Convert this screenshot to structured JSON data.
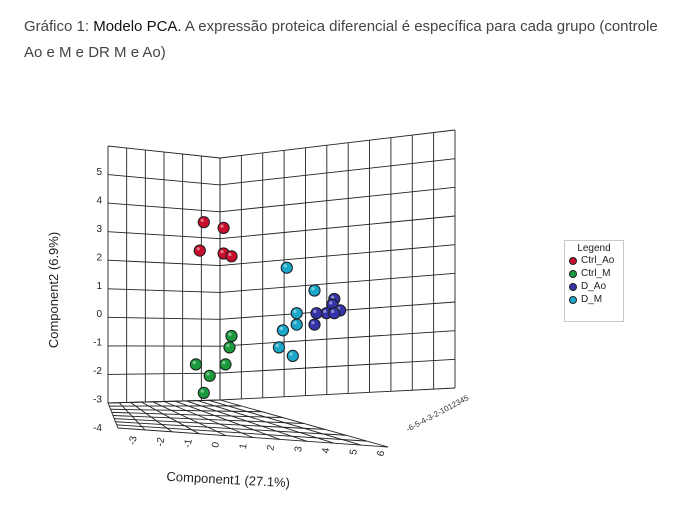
{
  "caption": {
    "prefix": "Gráfico 1: ",
    "bold": "Modelo PCA.",
    "rest": " A expressão proteica diferencial é específica para cada grupo (controle Ao e M e DR M e Ao)"
  },
  "chart_data": {
    "type": "scatter",
    "projection": "3d",
    "xlabel": "Component1 (27.1%)",
    "ylabel": "Component2 (6.9%)",
    "zlabel": "",
    "xlim": [
      -4,
      6
    ],
    "ylim": [
      -4,
      5
    ],
    "zlim": [
      -6,
      5
    ],
    "x_ticks": [
      "-3",
      "-2",
      "-1",
      "0",
      "1",
      "2",
      "3",
      "4",
      "5",
      "6"
    ],
    "y_ticks": [
      "5",
      "4",
      "3",
      "2",
      "1",
      "0",
      "-1",
      "-2",
      "-3",
      "-4"
    ],
    "z_ticks_text": "-6-5-4-3-2-1012345",
    "grid": true,
    "legend": {
      "title": "Legend",
      "position": "right"
    },
    "series": [
      {
        "name": "Ctrl_Ao",
        "color": "#c8102e",
        "points": [
          {
            "x": -2.0,
            "y": 3.2,
            "z": 0
          },
          {
            "x": -1.0,
            "y": 3.0,
            "z": 0
          },
          {
            "x": -2.2,
            "y": 2.2,
            "z": 0
          },
          {
            "x": -1.0,
            "y": 2.1,
            "z": 0
          },
          {
            "x": -0.6,
            "y": 2.0,
            "z": 0
          }
        ]
      },
      {
        "name": "Ctrl_M",
        "color": "#1a9a3c",
        "points": [
          {
            "x": -0.6,
            "y": -0.8,
            "z": 0
          },
          {
            "x": -0.7,
            "y": -1.2,
            "z": 0
          },
          {
            "x": -2.4,
            "y": -1.8,
            "z": 0
          },
          {
            "x": -0.9,
            "y": -1.8,
            "z": 0
          },
          {
            "x": -1.7,
            "y": -2.2,
            "z": 0
          },
          {
            "x": -2.0,
            "y": -2.8,
            "z": 0
          }
        ]
      },
      {
        "name": "D_Ao",
        "color": "#3434a8",
        "points": [
          {
            "x": 4.6,
            "y": 0.5,
            "z": 0
          },
          {
            "x": 4.5,
            "y": 0.3,
            "z": 0
          },
          {
            "x": 4.9,
            "y": 0.1,
            "z": 0
          },
          {
            "x": 4.2,
            "y": 0.0,
            "z": 0
          },
          {
            "x": 3.7,
            "y": 0.0,
            "z": 0
          },
          {
            "x": 4.6,
            "y": 0.0,
            "z": 0
          },
          {
            "x": 3.6,
            "y": -0.4,
            "z": 0
          }
        ]
      },
      {
        "name": "D_M",
        "color": "#1aa7c9",
        "points": [
          {
            "x": 2.2,
            "y": 1.6,
            "z": 0
          },
          {
            "x": 3.6,
            "y": 0.8,
            "z": 0
          },
          {
            "x": 2.7,
            "y": 0.0,
            "z": 0
          },
          {
            "x": 2.7,
            "y": -0.4,
            "z": 0
          },
          {
            "x": 2.0,
            "y": -0.6,
            "z": 0
          },
          {
            "x": 1.8,
            "y": -1.2,
            "z": 0
          },
          {
            "x": 2.5,
            "y": -1.5,
            "z": 0
          }
        ]
      }
    ]
  }
}
